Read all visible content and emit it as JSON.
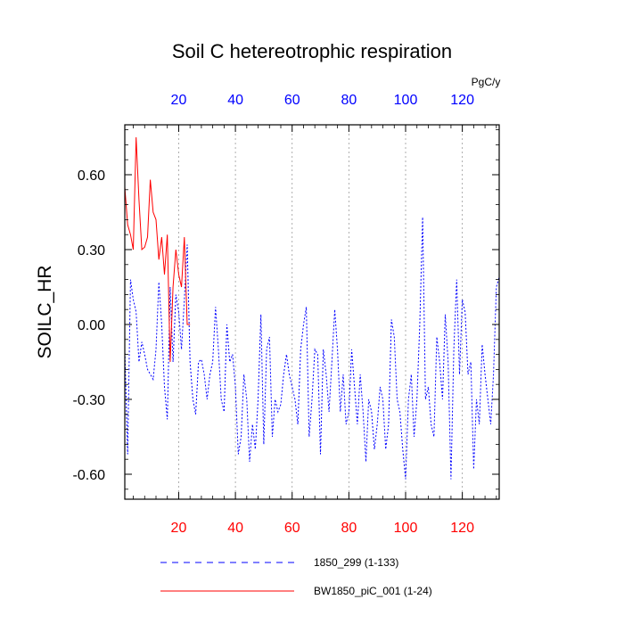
{
  "chart_data": {
    "type": "line",
    "title": "Soil C hetereotrophic respiration",
    "ylabel": "SOILC_HR",
    "top_axis_unit": "PgC/y",
    "xlim": [
      1,
      133
    ],
    "ylim": [
      -0.7,
      0.8
    ],
    "ytick_values": [
      0.6,
      0.3,
      0.0,
      -0.3,
      -0.6
    ],
    "ytick_labels": [
      "0.60",
      "0.30",
      "0.00",
      "-0.30",
      "-0.60"
    ],
    "xtick_values": [
      20,
      40,
      60,
      80,
      100,
      120
    ],
    "xtick_labels_bottom": [
      "20",
      "40",
      "60",
      "80",
      "100",
      "120"
    ],
    "xtick_labels_top": [
      "20",
      "40",
      "60",
      "80",
      "100",
      "120"
    ],
    "vertical_gridlines": [
      20,
      40,
      60,
      80,
      100,
      120
    ],
    "series": [
      {
        "name": "1850_299 (1-133)",
        "color": "#0000ff",
        "style": "dashed",
        "x": [
          1,
          2,
          3,
          4,
          5,
          6,
          7,
          8,
          9,
          10,
          11,
          12,
          13,
          14,
          15,
          16,
          17,
          18,
          19,
          20,
          21,
          22,
          23,
          24,
          25,
          26,
          27,
          28,
          29,
          30,
          31,
          32,
          33,
          34,
          35,
          36,
          37,
          38,
          39,
          40,
          41,
          42,
          43,
          44,
          45,
          46,
          47,
          48,
          49,
          50,
          51,
          52,
          53,
          54,
          55,
          56,
          57,
          58,
          59,
          60,
          61,
          62,
          63,
          64,
          65,
          66,
          67,
          68,
          69,
          70,
          71,
          72,
          73,
          74,
          75,
          76,
          77,
          78,
          79,
          80,
          81,
          82,
          83,
          84,
          85,
          86,
          87,
          88,
          89,
          90,
          91,
          92,
          93,
          94,
          95,
          96,
          97,
          98,
          99,
          100,
          101,
          102,
          103,
          104,
          105,
          106,
          107,
          108,
          109,
          110,
          111,
          112,
          113,
          114,
          115,
          116,
          117,
          118,
          119,
          120,
          121,
          122,
          123,
          124,
          125,
          126,
          127,
          128,
          129,
          130,
          131,
          132,
          133
        ],
        "values": [
          -0.1,
          -0.52,
          0.18,
          0.1,
          0.05,
          -0.15,
          -0.07,
          -0.12,
          -0.18,
          -0.2,
          -0.22,
          -0.1,
          0.17,
          0.0,
          -0.25,
          -0.38,
          0.15,
          -0.15,
          0.12,
          0.05,
          -0.1,
          0.1,
          0.32,
          -0.15,
          -0.3,
          -0.36,
          -0.15,
          -0.14,
          -0.2,
          -0.3,
          -0.2,
          -0.15,
          0.07,
          -0.1,
          -0.3,
          -0.35,
          0.0,
          -0.15,
          -0.12,
          -0.25,
          -0.52,
          -0.45,
          -0.2,
          -0.3,
          -0.55,
          -0.4,
          -0.5,
          -0.3,
          0.04,
          -0.48,
          -0.1,
          -0.05,
          -0.45,
          -0.3,
          -0.35,
          -0.32,
          -0.2,
          -0.12,
          -0.2,
          -0.25,
          -0.3,
          -0.4,
          -0.1,
          0.0,
          0.07,
          -0.45,
          -0.3,
          -0.1,
          -0.12,
          -0.52,
          -0.1,
          -0.2,
          -0.35,
          -0.15,
          0.06,
          -0.1,
          -0.35,
          -0.2,
          -0.4,
          -0.35,
          -0.1,
          -0.25,
          -0.4,
          -0.2,
          -0.35,
          -0.55,
          -0.3,
          -0.35,
          -0.5,
          -0.4,
          -0.25,
          -0.3,
          -0.5,
          -0.4,
          0.02,
          -0.05,
          -0.3,
          -0.35,
          -0.5,
          -0.62,
          -0.3,
          -0.2,
          -0.45,
          -0.3,
          0.0,
          0.43,
          -0.3,
          -0.25,
          -0.4,
          -0.45,
          -0.05,
          -0.15,
          -0.3,
          0.04,
          -0.15,
          -0.62,
          -0.1,
          0.18,
          -0.2,
          0.1,
          0.05,
          -0.2,
          -0.15,
          -0.58,
          -0.3,
          -0.4,
          -0.08,
          -0.2,
          -0.3,
          -0.4,
          -0.2,
          0.15,
          0.19
        ]
      },
      {
        "name": "BW1850_piC_001 (1-24)",
        "color": "#ff0000",
        "style": "solid",
        "x": [
          1,
          2,
          3,
          4,
          5,
          6,
          7,
          8,
          9,
          10,
          11,
          12,
          13,
          14,
          15,
          16,
          17,
          18,
          19,
          20,
          21,
          22,
          23,
          24
        ],
        "values": [
          0.55,
          0.4,
          0.36,
          0.3,
          0.75,
          0.5,
          0.3,
          0.31,
          0.35,
          0.58,
          0.45,
          0.42,
          0.26,
          0.35,
          0.2,
          0.36,
          -0.15,
          0.15,
          0.3,
          0.2,
          0.15,
          0.35,
          0.0,
          0.0
        ]
      }
    ]
  }
}
